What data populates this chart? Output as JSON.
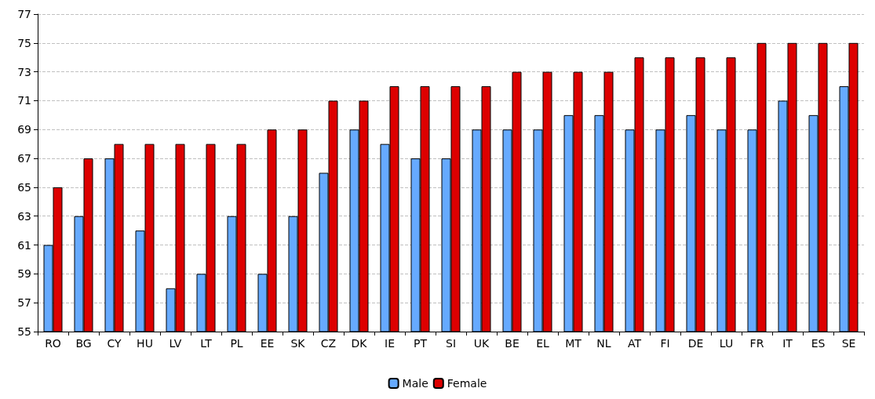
{
  "chart_data": {
    "type": "bar",
    "categories": [
      "RO",
      "BG",
      "CY",
      "HU",
      "LV",
      "LT",
      "PL",
      "EE",
      "SK",
      "CZ",
      "DK",
      "IE",
      "PT",
      "SI",
      "UK",
      "BE",
      "EL",
      "MT",
      "NL",
      "AT",
      "FI",
      "DE",
      "LU",
      "FR",
      "IT",
      "ES",
      "SE"
    ],
    "series": [
      {
        "name": "Male",
        "color": "#66aaff",
        "values": [
          61,
          63,
          67,
          62,
          58,
          59,
          63,
          59,
          63,
          66,
          69,
          68,
          67,
          67,
          69,
          69,
          69,
          70,
          70,
          69,
          69,
          70,
          69,
          69,
          71,
          70,
          72
        ]
      },
      {
        "name": "Female",
        "color": "#dd0000",
        "values": [
          65,
          67,
          68,
          68,
          68,
          68,
          68,
          69,
          69,
          71,
          71,
          72,
          72,
          72,
          72,
          73,
          73,
          73,
          73,
          74,
          74,
          74,
          74,
          75,
          75,
          75,
          75
        ]
      }
    ],
    "ylim": [
      55,
      77
    ],
    "yticks": [
      55,
      57,
      59,
      61,
      63,
      65,
      67,
      69,
      71,
      73,
      75,
      77
    ],
    "grid": "y",
    "legend": "bottom"
  }
}
